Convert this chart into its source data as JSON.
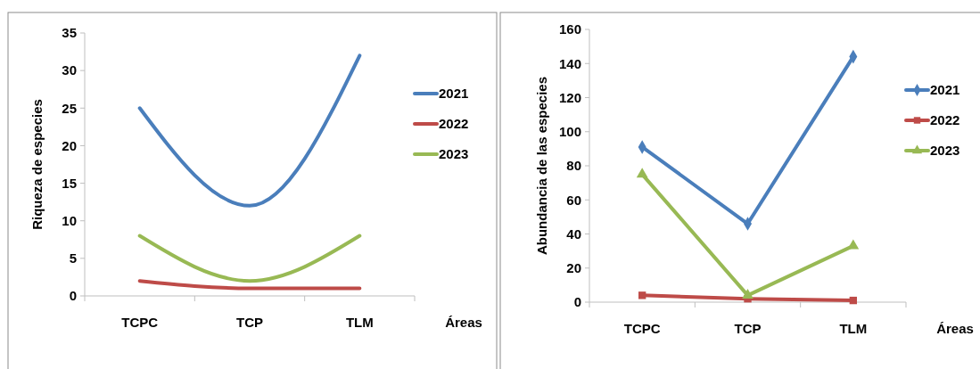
{
  "chart_data": [
    {
      "type": "line",
      "ylabel": "Riqueza de especies",
      "xlabel": "Áreas",
      "categories": [
        "TCPC",
        "TCP",
        "TLM"
      ],
      "ylim": [
        0,
        35
      ],
      "yticks": [
        0,
        5,
        10,
        15,
        20,
        25,
        30,
        35
      ],
      "grid": false,
      "legend": "right",
      "marker": "none",
      "series": [
        {
          "name": "2021",
          "color": "#4a7ebb",
          "values": [
            25,
            12,
            32
          ]
        },
        {
          "name": "2022",
          "color": "#be4b48",
          "values": [
            2,
            1,
            1
          ]
        },
        {
          "name": "2023",
          "color": "#98b954",
          "values": [
            8,
            2,
            8
          ]
        }
      ]
    },
    {
      "type": "line",
      "ylabel": "Abundancia de las especies",
      "xlabel": "Áreas",
      "categories": [
        "TCPC",
        "TCP",
        "TLM"
      ],
      "ylim": [
        0,
        160
      ],
      "yticks": [
        0,
        20,
        40,
        60,
        80,
        100,
        120,
        140,
        160
      ],
      "grid": false,
      "legend": "right",
      "series": [
        {
          "name": "2021",
          "color": "#4a7ebb",
          "marker": "diamond",
          "values": [
            91,
            46,
            144
          ]
        },
        {
          "name": "2022",
          "color": "#be4b48",
          "marker": "square",
          "values": [
            4,
            2,
            1
          ]
        },
        {
          "name": "2023",
          "color": "#98b954",
          "marker": "triangle",
          "values": [
            75,
            4,
            33
          ]
        }
      ]
    }
  ]
}
